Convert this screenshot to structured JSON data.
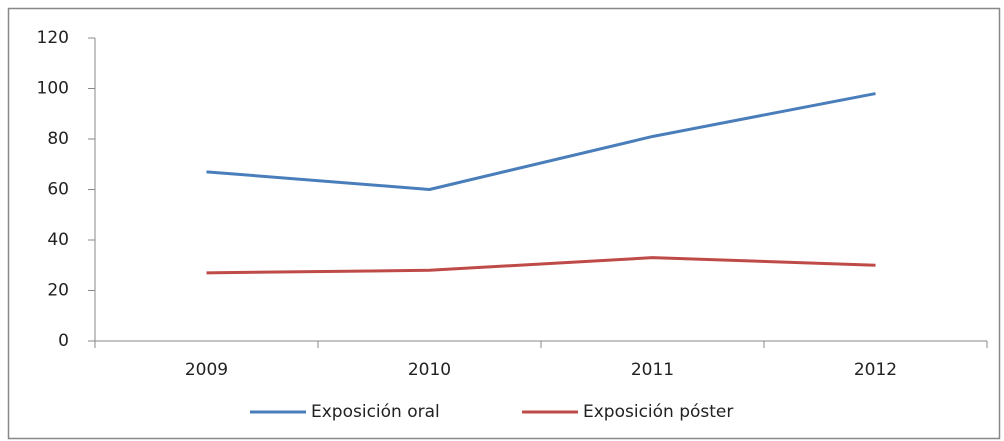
{
  "chart_data": {
    "type": "line",
    "categories": [
      "2009",
      "2010",
      "2011",
      "2012"
    ],
    "series": [
      {
        "name": "Exposición oral",
        "color": "#4a7ebb",
        "values": [
          67,
          60,
          81,
          98
        ]
      },
      {
        "name": "Exposición póster",
        "color": "#be4b48",
        "values": [
          27,
          28,
          33,
          30
        ]
      }
    ],
    "ylim": [
      0,
      120
    ],
    "yticks": [
      0,
      20,
      40,
      60,
      80,
      100,
      120
    ],
    "grid": false,
    "legend": "bottom"
  }
}
